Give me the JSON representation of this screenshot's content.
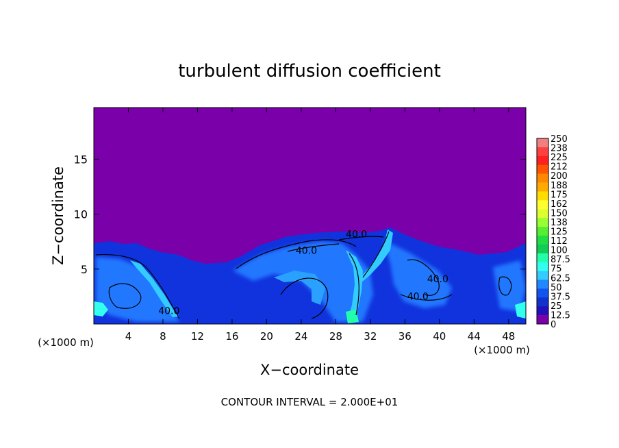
{
  "chart_data": {
    "type": "heatmap",
    "title": "turbulent diffusion coefficient",
    "xlabel": "X−coordinate",
    "ylabel": "Z−coordinate",
    "x_unit_left": "(×1000 m)",
    "x_unit_right": "(×1000 m)",
    "footer": "CONTOUR INTERVAL = 2.000E+01",
    "x_ticks": [
      "4",
      "8",
      "12",
      "16",
      "20",
      "24",
      "28",
      "32",
      "36",
      "40",
      "44",
      "48"
    ],
    "y_ticks": [
      "5",
      "10",
      "15"
    ],
    "xlim": [
      0,
      50
    ],
    "ylim": [
      0,
      19.7
    ],
    "colorbar": {
      "labels": [
        "250",
        "238",
        "225",
        "212",
        "200",
        "188",
        "175",
        "162",
        "150",
        "138",
        "125",
        "112",
        "100",
        "87.5",
        "75",
        "62.5",
        "50",
        "37.5",
        "25",
        "12.5",
        "0"
      ],
      "colors": [
        "#f08080",
        "#ff4040",
        "#ff2020",
        "#ff5500",
        "#ff8800",
        "#ffaa00",
        "#ffdd00",
        "#ffff30",
        "#ddff30",
        "#99ff33",
        "#55ee33",
        "#22dd44",
        "#11cc55",
        "#22ffaa",
        "#33ffee",
        "#33ccff",
        "#2288ff",
        "#1155ee",
        "#1133cc",
        "#2211bb",
        "#7a00aa"
      ]
    },
    "contour_labels": [
      {
        "text": "40.0",
        "x": 8.7,
        "y": 0.9
      },
      {
        "text": "40.0",
        "x": 24.6,
        "y": 6.4
      },
      {
        "text": "40.0",
        "x": 30.4,
        "y": 7.9
      },
      {
        "text": "40.0",
        "x": 39.8,
        "y": 3.8
      },
      {
        "text": "40.0",
        "x": 37.5,
        "y": 2.2
      }
    ],
    "background_value_above_z": {
      "z": 9,
      "value": 0
    }
  }
}
